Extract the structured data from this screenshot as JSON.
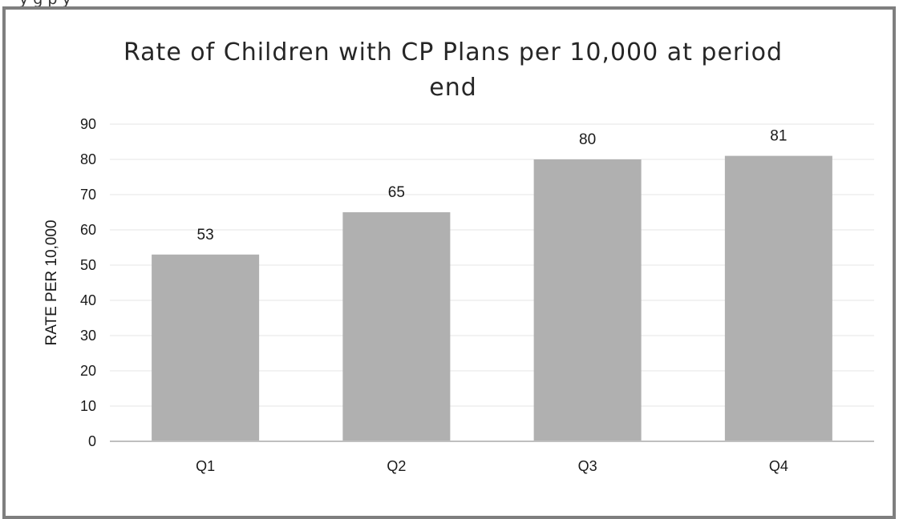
{
  "caption": "y                                                    g    p                           y",
  "chart_data": {
    "type": "bar",
    "title": "Rate of Children with CP Plans per 10,000 at period end",
    "xlabel": "",
    "ylabel": "RATE PER 10,000",
    "categories": [
      "Q1",
      "Q2",
      "Q3",
      "Q4"
    ],
    "values": [
      53,
      65,
      80,
      81
    ],
    "data_labels": [
      "53",
      "65",
      "80",
      "81"
    ],
    "ylim": [
      0,
      90
    ],
    "yticks": [
      "0",
      "10",
      "20",
      "30",
      "40",
      "50",
      "60",
      "70",
      "80",
      "90"
    ],
    "grid": true,
    "legend": "none",
    "colors": {
      "bar": "#b0b0b0",
      "grid": "#e6e6e6",
      "axis": "#bfbfbf",
      "frame": "#7f7f7f"
    }
  }
}
